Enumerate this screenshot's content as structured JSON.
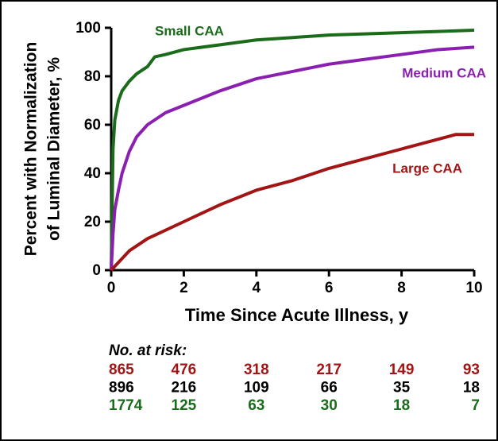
{
  "chart_data": {
    "type": "line",
    "x_label": "Time Since Acute Illness, y",
    "y_label": [
      "Percent with Normalization",
      "of Luminal Diameter, %"
    ],
    "xlim": [
      0,
      10
    ],
    "xticks": [
      0,
      2,
      4,
      6,
      8,
      10
    ],
    "ylim": [
      0,
      100
    ],
    "yticks": [
      0,
      20,
      40,
      60,
      80,
      100
    ],
    "series": [
      {
        "name": "Small CAA",
        "color": "#1a6b1a",
        "x": [
          0,
          0.05,
          0.1,
          0.2,
          0.3,
          0.5,
          0.7,
          1,
          1.2,
          1.5,
          2,
          3,
          4,
          5,
          6,
          7,
          8,
          9,
          10
        ],
        "values": [
          0,
          50,
          62,
          70,
          74,
          78,
          81,
          84,
          88,
          89,
          91,
          93,
          95,
          96,
          97,
          97.5,
          98,
          98.5,
          99
        ]
      },
      {
        "name": "Medium  CAA",
        "color": "#8a1fb0",
        "x": [
          0,
          0.05,
          0.1,
          0.2,
          0.3,
          0.5,
          0.7,
          1,
          1.5,
          2,
          3,
          4,
          5,
          6,
          7,
          8,
          9,
          10
        ],
        "values": [
          0,
          15,
          25,
          33,
          40,
          49,
          55,
          60,
          65,
          68,
          74,
          79,
          82,
          85,
          87,
          89,
          91,
          92
        ]
      },
      {
        "name": "Large CAA",
        "color": "#a31515",
        "x": [
          0,
          0.5,
          1,
          2,
          3,
          4,
          5,
          6,
          7,
          8,
          9,
          9.5,
          10
        ],
        "values": [
          0,
          8,
          13,
          20,
          27,
          33,
          37,
          42,
          46,
          50,
          54,
          56,
          56
        ]
      }
    ],
    "at_risk": {
      "title": "No. at risk:",
      "rows": [
        {
          "color": "#a31515",
          "values": [
            865,
            476,
            318,
            217,
            149,
            93
          ]
        },
        {
          "color": "#000000",
          "values": [
            896,
            216,
            109,
            66,
            35,
            18
          ]
        },
        {
          "color": "#1a6b1a",
          "values": [
            1774,
            125,
            63,
            30,
            18,
            7
          ]
        }
      ]
    }
  }
}
